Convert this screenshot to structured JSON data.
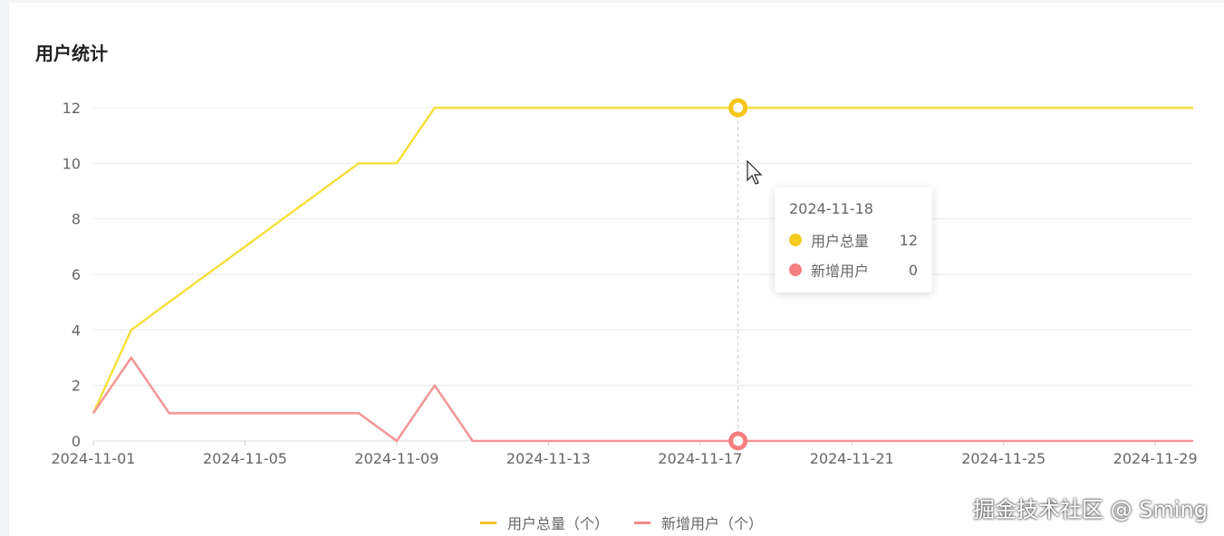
{
  "card": {
    "title": "用户统计"
  },
  "chart_data": {
    "type": "line",
    "x": [
      "2024-11-01",
      "2024-11-02",
      "2024-11-03",
      "2024-11-04",
      "2024-11-05",
      "2024-11-06",
      "2024-11-07",
      "2024-11-08",
      "2024-11-09",
      "2024-11-10",
      "2024-11-11",
      "2024-11-12",
      "2024-11-13",
      "2024-11-14",
      "2024-11-15",
      "2024-11-16",
      "2024-11-17",
      "2024-11-18",
      "2024-11-19",
      "2024-11-20",
      "2024-11-21",
      "2024-11-22",
      "2024-11-23",
      "2024-11-24",
      "2024-11-25",
      "2024-11-26",
      "2024-11-27",
      "2024-11-28",
      "2024-11-29",
      "2024-11-30"
    ],
    "x_tick_labels": [
      "2024-11-01",
      "2024-11-05",
      "2024-11-09",
      "2024-11-13",
      "2024-11-17",
      "2024-11-21",
      "2024-11-25",
      "2024-11-29"
    ],
    "y_tick_labels": [
      "0",
      "2",
      "4",
      "6",
      "8",
      "10",
      "12"
    ],
    "ylim": [
      0,
      12
    ],
    "grid": true,
    "legend": "bottom",
    "series": [
      {
        "name": "用户总量（个）",
        "color": "#f5e03c",
        "values": [
          1,
          4,
          5,
          6,
          7,
          8,
          9,
          10,
          10,
          12,
          12,
          12,
          12,
          12,
          12,
          12,
          12,
          12,
          12,
          12,
          12,
          12,
          12,
          12,
          12,
          12,
          12,
          12,
          12,
          12
        ]
      },
      {
        "name": "新增用户（个）",
        "color": "#f59595",
        "values": [
          1,
          3,
          1,
          1,
          1,
          1,
          1,
          1,
          0,
          2,
          0,
          0,
          0,
          0,
          0,
          0,
          0,
          0,
          0,
          0,
          0,
          0,
          0,
          0,
          0,
          0,
          0,
          0,
          0,
          0
        ]
      }
    ]
  },
  "tooltip": {
    "date": "2024-11-18",
    "rows": [
      {
        "label": "用户总量",
        "value": "12",
        "color": "#f5cc1f"
      },
      {
        "label": "新增用户",
        "value": "0",
        "color": "#f57f7f"
      }
    ]
  },
  "legend": {
    "colors": [
      "#f3c52a",
      "#ef8c8c"
    ]
  },
  "watermark": "掘金技术社区 @ Sming"
}
